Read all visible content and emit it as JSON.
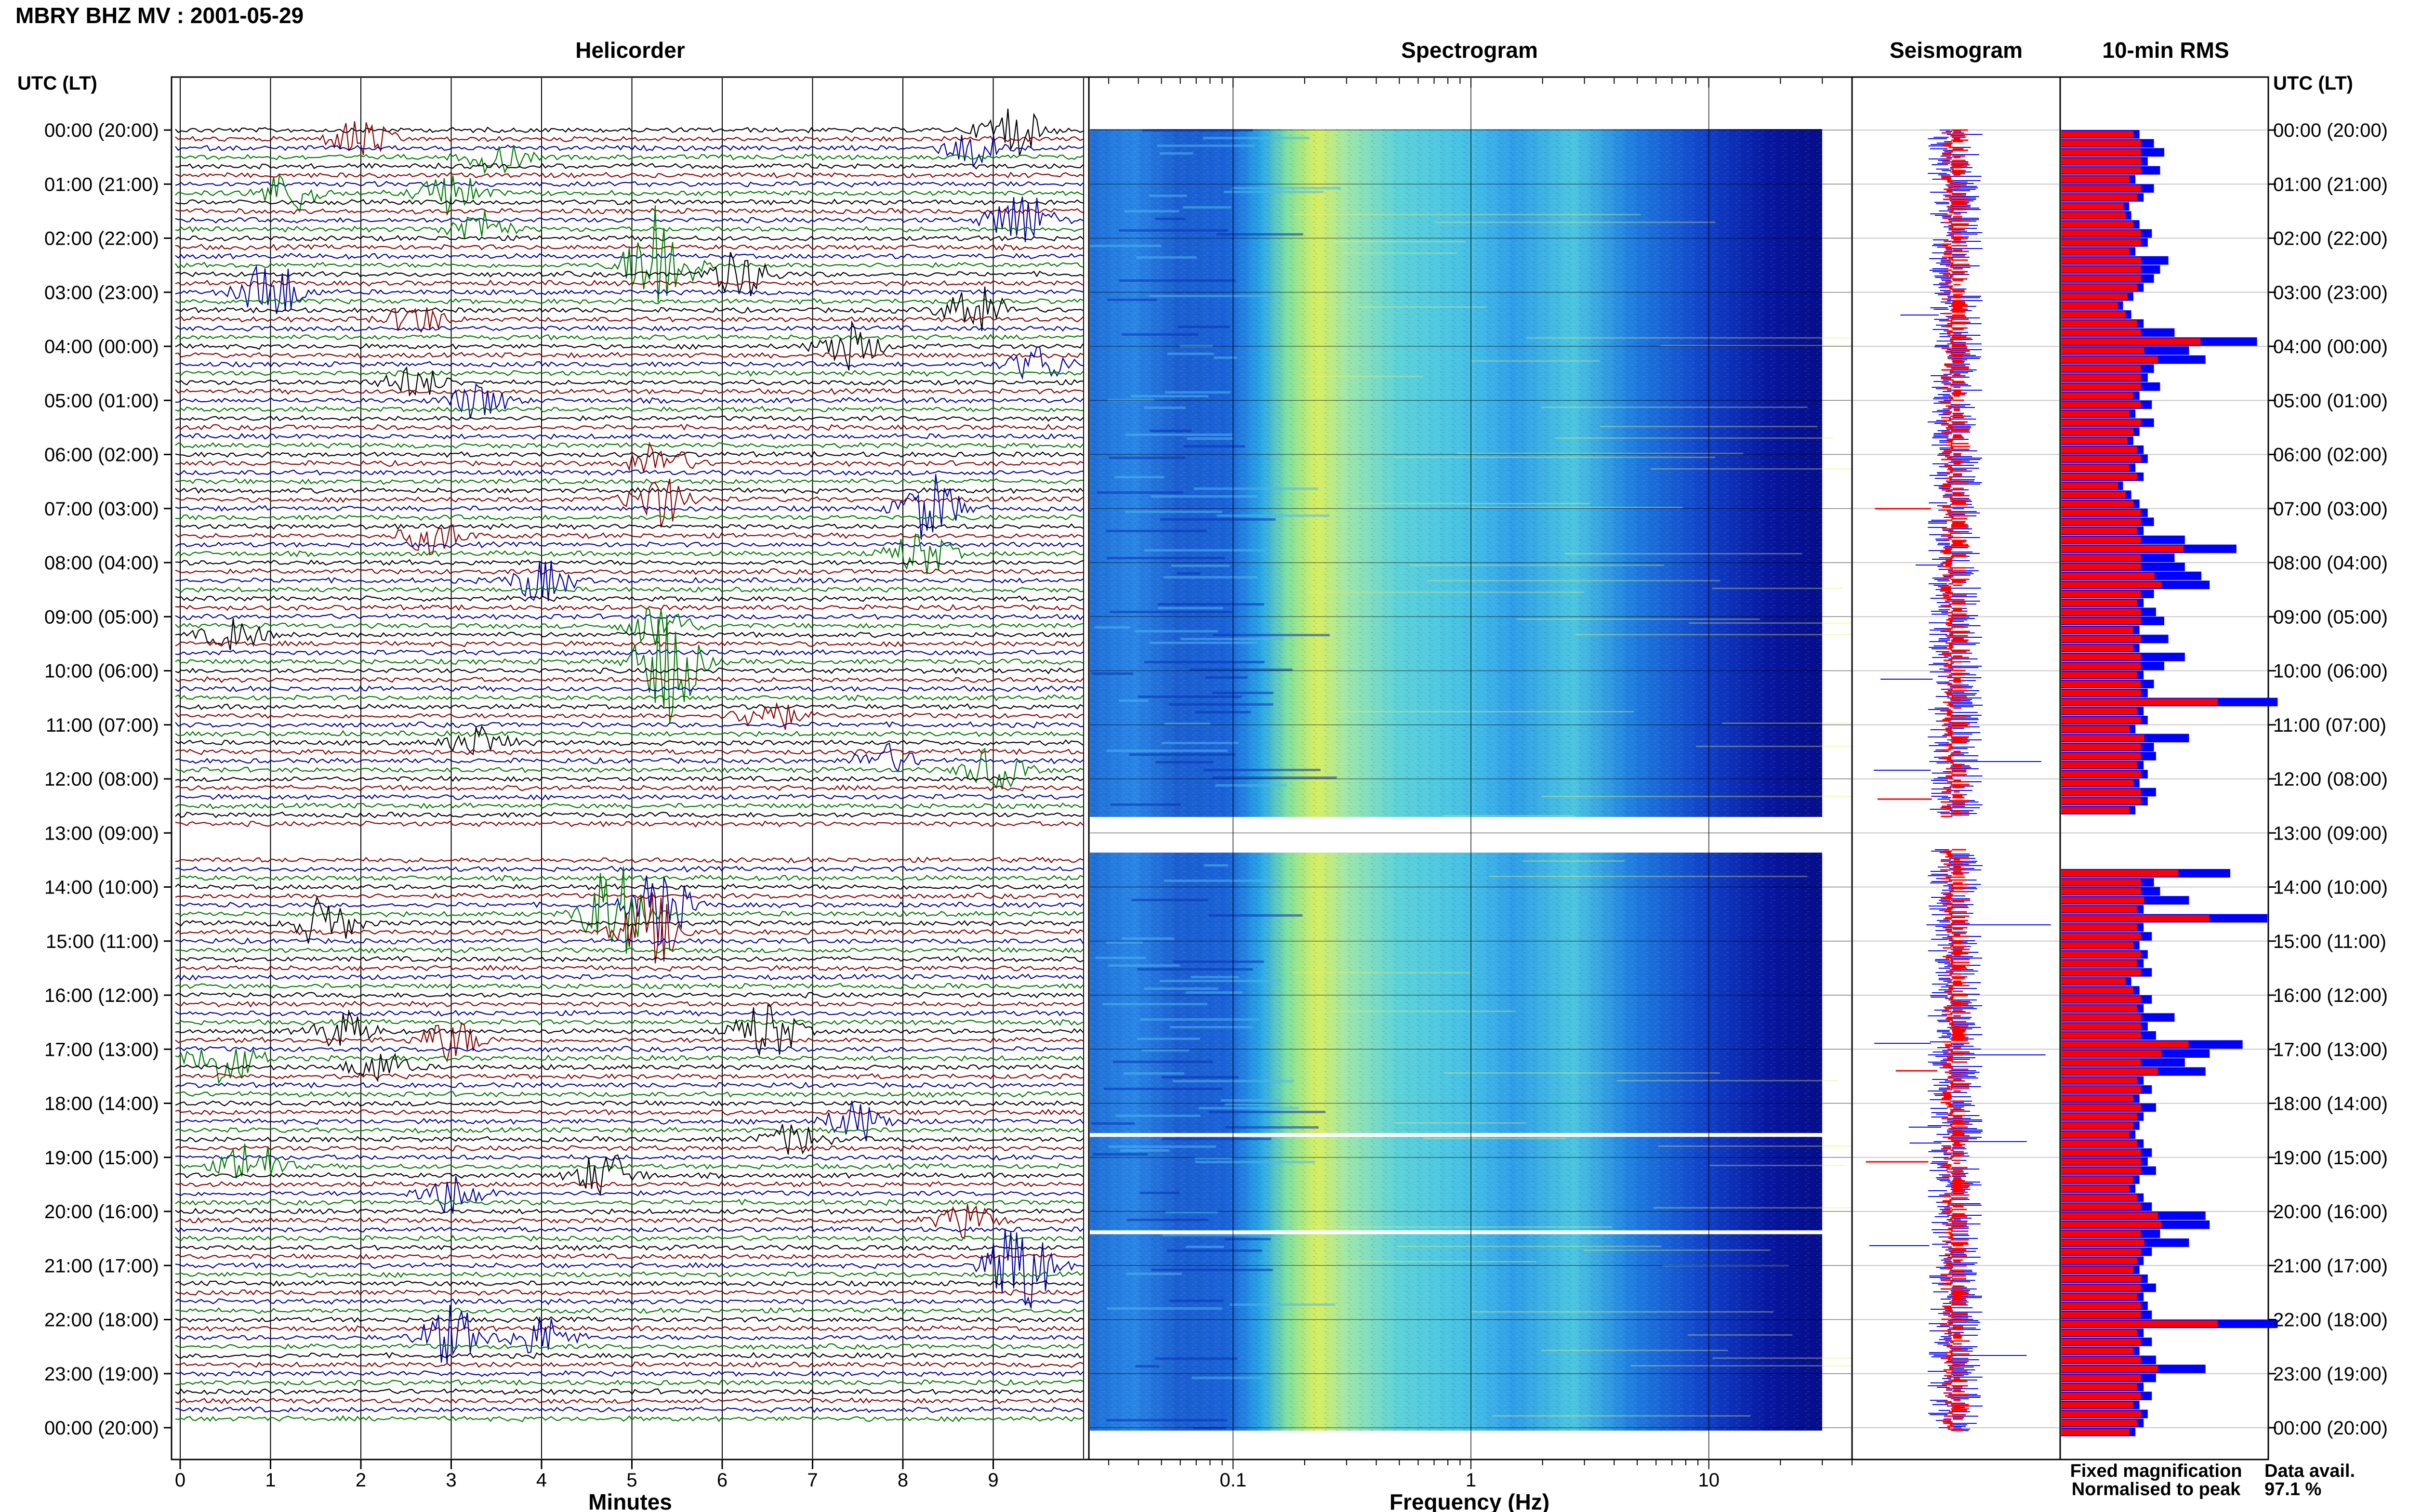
{
  "header": {
    "title": "MBRY BHZ MV : 2001-05-29"
  },
  "panels": {
    "helicorder": "Helicorder",
    "spectrogram": "Spectrogram",
    "seismogram": "Seismogram",
    "rms": "10-min RMS"
  },
  "time_axis": {
    "label": "UTC (LT)",
    "ticks": [
      "00:00 (20:00)",
      "01:00 (21:00)",
      "02:00 (22:00)",
      "03:00 (23:00)",
      "04:00 (00:00)",
      "05:00 (01:00)",
      "06:00 (02:00)",
      "07:00 (03:00)",
      "08:00 (04:00)",
      "09:00 (05:00)",
      "10:00 (06:00)",
      "11:00 (07:00)",
      "12:00 (08:00)",
      "13:00 (09:00)",
      "14:00 (10:00)",
      "15:00 (11:00)",
      "16:00 (12:00)",
      "17:00 (13:00)",
      "18:00 (14:00)",
      "19:00 (15:00)",
      "20:00 (16:00)",
      "21:00 (17:00)",
      "22:00 (18:00)",
      "23:00 (19:00)",
      "00:00 (20:00)"
    ]
  },
  "minutes_axis": {
    "label": "Minutes",
    "ticks": [
      "0",
      "1",
      "2",
      "3",
      "4",
      "5",
      "6",
      "7",
      "8",
      "9"
    ]
  },
  "frequency_axis": {
    "label": "Frequency (Hz)",
    "ticks": [
      "0.1",
      "1",
      "10"
    ]
  },
  "legend": {
    "fixed": "Fixed magnification",
    "normalised": "Normalised to peak",
    "fixed_color": "#0000ff",
    "normalised_color": "#ff0000"
  },
  "data_availability": {
    "label": "Data avail.",
    "value": "97.1 %"
  },
  "colors": {
    "trace_cycle": [
      "#000000",
      "#8b0000",
      "#0000a0",
      "#007a00"
    ],
    "rms_fixed": "#0000ff",
    "rms_normalised": "#ff0000"
  },
  "chart_data": {
    "type": "heatmap",
    "helicorder": {
      "rows_per_hour": 6,
      "minutes_per_row": 10,
      "missing_hour": "13:00",
      "events": [
        {
          "hour": 0.0,
          "minute": 9.2,
          "amp": 1.0
        },
        {
          "hour": 0.1,
          "minute": 2.0,
          "amp": 0.8
        },
        {
          "hour": 0.3,
          "minute": 8.8,
          "amp": 0.7
        },
        {
          "hour": 0.5,
          "minute": 3.5,
          "amp": 0.6
        },
        {
          "hour": 1.1,
          "minute": 1.2,
          "amp": 0.8
        },
        {
          "hour": 1.2,
          "minute": 3.0,
          "amp": 0.9
        },
        {
          "hour": 1.7,
          "minute": 9.3,
          "amp": 1.2
        },
        {
          "hour": 1.9,
          "minute": 3.3,
          "amp": 0.7
        },
        {
          "hour": 2.5,
          "minute": 5.3,
          "amp": 2.6
        },
        {
          "hour": 2.7,
          "minute": 6.2,
          "amp": 0.9
        },
        {
          "hour": 3.0,
          "minute": 1.0,
          "amp": 1.3
        },
        {
          "hour": 3.3,
          "minute": 8.8,
          "amp": 1.0
        },
        {
          "hour": 3.5,
          "minute": 2.6,
          "amp": 0.6
        },
        {
          "hour": 4.0,
          "minute": 7.4,
          "amp": 0.9
        },
        {
          "hour": 4.3,
          "minute": 9.5,
          "amp": 0.7
        },
        {
          "hour": 4.7,
          "minute": 2.6,
          "amp": 0.6
        },
        {
          "hour": 5.0,
          "minute": 3.3,
          "amp": 0.7
        },
        {
          "hour": 6.1,
          "minute": 5.3,
          "amp": 0.8
        },
        {
          "hour": 6.8,
          "minute": 5.3,
          "amp": 1.0
        },
        {
          "hour": 7.0,
          "minute": 8.3,
          "amp": 1.3
        },
        {
          "hour": 7.5,
          "minute": 2.8,
          "amp": 0.7
        },
        {
          "hour": 7.9,
          "minute": 8.2,
          "amp": 0.9
        },
        {
          "hour": 8.3,
          "minute": 4.0,
          "amp": 0.8
        },
        {
          "hour": 9.1,
          "minute": 5.3,
          "amp": 0.9
        },
        {
          "hour": 9.3,
          "minute": 0.6,
          "amp": 0.6
        },
        {
          "hour": 9.8,
          "minute": 5.4,
          "amp": 2.4
        },
        {
          "hour": 10.8,
          "minute": 6.5,
          "amp": 0.7
        },
        {
          "hour": 11.3,
          "minute": 3.3,
          "amp": 0.6
        },
        {
          "hour": 11.6,
          "minute": 7.8,
          "amp": 0.6
        },
        {
          "hour": 11.9,
          "minute": 9.0,
          "amp": 0.8
        },
        {
          "hour": 14.3,
          "minute": 5.3,
          "amp": 1.5
        },
        {
          "hour": 14.5,
          "minute": 4.8,
          "amp": 2.0
        },
        {
          "hour": 14.6,
          "minute": 1.6,
          "amp": 1.0
        },
        {
          "hour": 14.8,
          "minute": 5.2,
          "amp": 1.5
        },
        {
          "hour": 16.6,
          "minute": 1.8,
          "amp": 0.7
        },
        {
          "hour": 16.7,
          "minute": 6.5,
          "amp": 1.2
        },
        {
          "hour": 16.9,
          "minute": 3.0,
          "amp": 0.8
        },
        {
          "hour": 17.1,
          "minute": 0.5,
          "amp": 1.1
        },
        {
          "hour": 17.4,
          "minute": 2.2,
          "amp": 0.6
        },
        {
          "hour": 18.3,
          "minute": 7.5,
          "amp": 0.8
        },
        {
          "hour": 18.6,
          "minute": 6.8,
          "amp": 0.6
        },
        {
          "hour": 19.1,
          "minute": 0.8,
          "amp": 1.0
        },
        {
          "hour": 19.3,
          "minute": 4.7,
          "amp": 0.9
        },
        {
          "hour": 19.7,
          "minute": 3.0,
          "amp": 0.8
        },
        {
          "hour": 20.2,
          "minute": 8.7,
          "amp": 0.6
        },
        {
          "hour": 21.0,
          "minute": 9.3,
          "amp": 2.2
        },
        {
          "hour": 22.3,
          "minute": 3.0,
          "amp": 1.2
        },
        {
          "hour": 22.4,
          "minute": 4.0,
          "amp": 0.8
        }
      ]
    },
    "spectrogram": {
      "xlim": [
        0.025,
        40
      ],
      "x_scale": "log",
      "content_max_hz": 30,
      "missing_hour": "13:00",
      "white_lines_hours": [
        18.55,
        20.35
      ]
    },
    "rms": {
      "fixed": [
        0.38,
        0.45,
        0.5,
        0.42,
        0.48,
        0.36,
        0.45,
        0.4,
        0.33,
        0.34,
        0.38,
        0.44,
        0.42,
        0.36,
        0.52,
        0.48,
        0.45,
        0.4,
        0.35,
        0.3,
        0.34,
        0.4,
        0.55,
        0.95,
        0.62,
        0.7,
        0.45,
        0.42,
        0.48,
        0.38,
        0.44,
        0.36,
        0.45,
        0.38,
        0.35,
        0.4,
        0.42,
        0.36,
        0.4,
        0.3,
        0.34,
        0.38,
        0.42,
        0.45,
        0.4,
        0.6,
        0.85,
        0.55,
        0.6,
        0.68,
        0.72,
        0.45,
        0.4,
        0.46,
        0.5,
        0.38,
        0.52,
        0.38,
        0.6,
        0.5,
        0.4,
        0.45,
        0.42,
        1.05,
        0.4,
        0.42,
        0.36,
        0.62,
        0.45,
        0.46,
        0.4,
        0.42,
        0.38,
        0.46,
        0.42,
        0.36,
        0.0,
        0.0,
        0.0,
        0.0,
        0.0,
        0.0,
        0.82,
        0.45,
        0.48,
        0.62,
        0.4,
        1.0,
        0.4,
        0.44,
        0.38,
        0.42,
        0.4,
        0.44,
        0.34,
        0.38,
        0.44,
        0.4,
        0.55,
        0.42,
        0.46,
        0.88,
        0.72,
        0.6,
        0.7,
        0.4,
        0.44,
        0.38,
        0.46,
        0.4,
        0.38,
        0.36,
        0.4,
        0.44,
        0.42,
        0.46,
        0.38,
        0.36,
        0.4,
        0.44,
        0.7,
        0.72,
        0.48,
        0.62,
        0.44,
        0.4,
        0.38,
        0.42,
        0.46,
        0.4,
        0.42,
        0.44,
        1.05,
        0.4,
        0.44,
        0.38,
        0.46,
        0.7,
        0.46,
        0.4,
        0.44,
        0.38,
        0.42,
        0.4,
        0.36
      ]
    }
  }
}
